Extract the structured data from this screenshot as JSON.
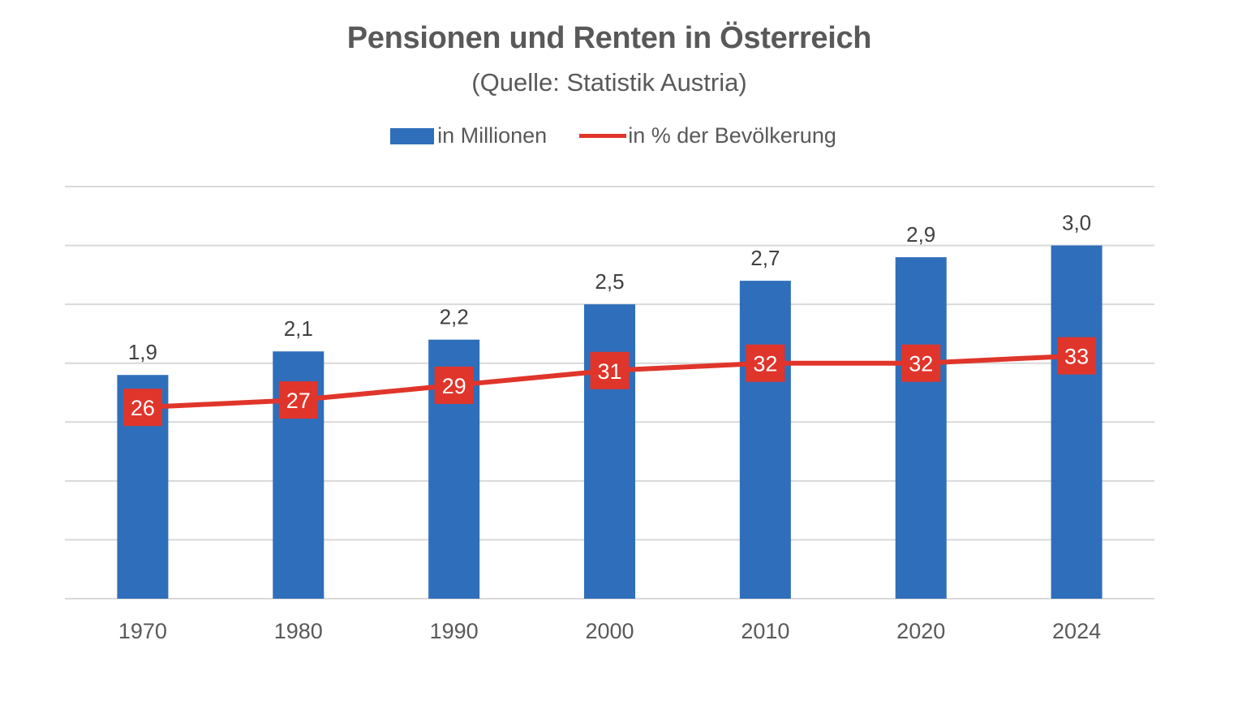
{
  "chart_data": {
    "type": "bar",
    "title": "Pensionen und Renten in Österreich",
    "subtitle": "(Quelle: Statistik Austria)",
    "categories": [
      "1970",
      "1980",
      "1990",
      "2000",
      "2010",
      "2020",
      "2024"
    ],
    "series": [
      {
        "name": "in Millionen",
        "type": "bar",
        "color": "#2F6EBA",
        "values": [
          1.9,
          2.1,
          2.2,
          2.5,
          2.7,
          2.9,
          3.0
        ],
        "labels": [
          "1,9",
          "2,1",
          "2,2",
          "2,5",
          "2,7",
          "2,9",
          "3,0"
        ]
      },
      {
        "name": "in % der Bevölkerung",
        "type": "line",
        "color": "#E0352B",
        "values": [
          26,
          27,
          29,
          31,
          32,
          32,
          33
        ],
        "labels": [
          "26",
          "27",
          "29",
          "31",
          "32",
          "32",
          "33"
        ]
      }
    ],
    "xlabel": "",
    "ylabel": "",
    "ylim_bar": [
      0,
      3.5
    ],
    "ylim_line": [
      0,
      56
    ],
    "grid": true,
    "legend_position": "top-center"
  }
}
